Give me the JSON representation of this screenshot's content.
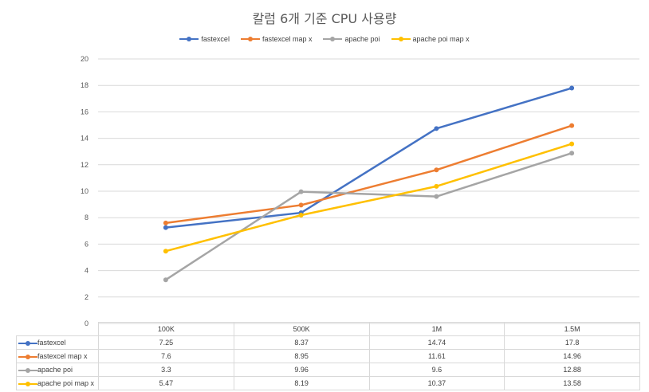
{
  "chart_data": {
    "type": "line",
    "title": "칼럼 6개 기준 CPU 사용량",
    "categories": [
      "100K",
      "500K",
      "1M",
      "1.5M"
    ],
    "ylim": [
      0,
      20
    ],
    "yticks": [
      0,
      2,
      4,
      6,
      8,
      10,
      12,
      14,
      16,
      18,
      20
    ],
    "grid": true,
    "legend_position": "top",
    "series": [
      {
        "name": "fastexcel",
        "color": "#4472c4",
        "values": [
          7.25,
          8.37,
          14.74,
          17.8
        ]
      },
      {
        "name": "fastexcel map x",
        "color": "#ed7d31",
        "values": [
          7.6,
          8.95,
          11.61,
          14.96
        ]
      },
      {
        "name": "apache poi",
        "color": "#a5a5a5",
        "values": [
          3.3,
          9.96,
          9.6,
          12.88
        ]
      },
      {
        "name": "apache poi map x",
        "color": "#ffc000",
        "values": [
          5.47,
          8.19,
          10.37,
          13.58
        ]
      }
    ]
  }
}
